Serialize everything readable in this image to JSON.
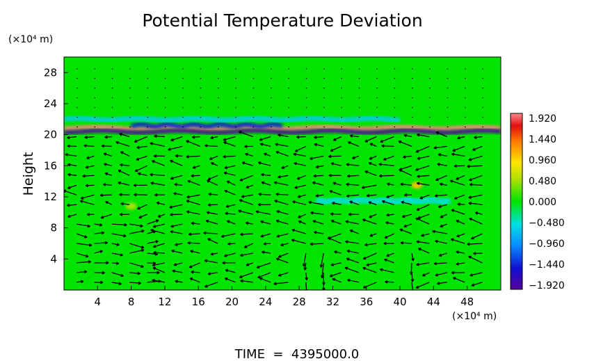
{
  "chart_data": {
    "type": "heatmap",
    "title": "Potential Temperature Deviation",
    "ylabel": "Height",
    "xunit": "(×10⁴ m)",
    "yunit": "(×10⁴ m)",
    "xlim": [
      0,
      52
    ],
    "ylim": [
      0,
      30
    ],
    "xticks": [
      4,
      8,
      12,
      16,
      20,
      24,
      28,
      32,
      36,
      40,
      44,
      48
    ],
    "yticks": [
      4,
      8,
      12,
      16,
      20,
      24,
      28
    ],
    "colorbar": {
      "min": -1.92,
      "max": 1.92,
      "tick_labels": [
        "1.920",
        "1.440",
        "0.960",
        "0.480",
        "0.000",
        "−0.480",
        "−0.960",
        "−1.440",
        "−1.920"
      ]
    },
    "footer": "TIME  =  4395000.0",
    "background_value": 0.0,
    "features": [
      {
        "kind": "warm_band",
        "y": 20.9,
        "x_range": [
          0,
          52
        ],
        "value": 1.9
      },
      {
        "kind": "cold_band",
        "y": 20.4,
        "x_range": [
          0,
          52
        ],
        "value": -1.9
      },
      {
        "kind": "cold_band",
        "y": 21.2,
        "x_range": [
          8,
          26
        ],
        "value": -1.4
      },
      {
        "kind": "cyan_band",
        "y": 22.0,
        "x_range": [
          0,
          40
        ],
        "value": -0.6
      },
      {
        "kind": "warm_spot",
        "x": 42,
        "y": 13.5,
        "value": 1.0
      },
      {
        "kind": "warm_spot",
        "x": 8,
        "y": 10.8,
        "value": 0.5
      },
      {
        "kind": "cool_streak",
        "y": 11.5,
        "x_range": [
          30,
          46
        ],
        "value": -0.5
      }
    ]
  }
}
